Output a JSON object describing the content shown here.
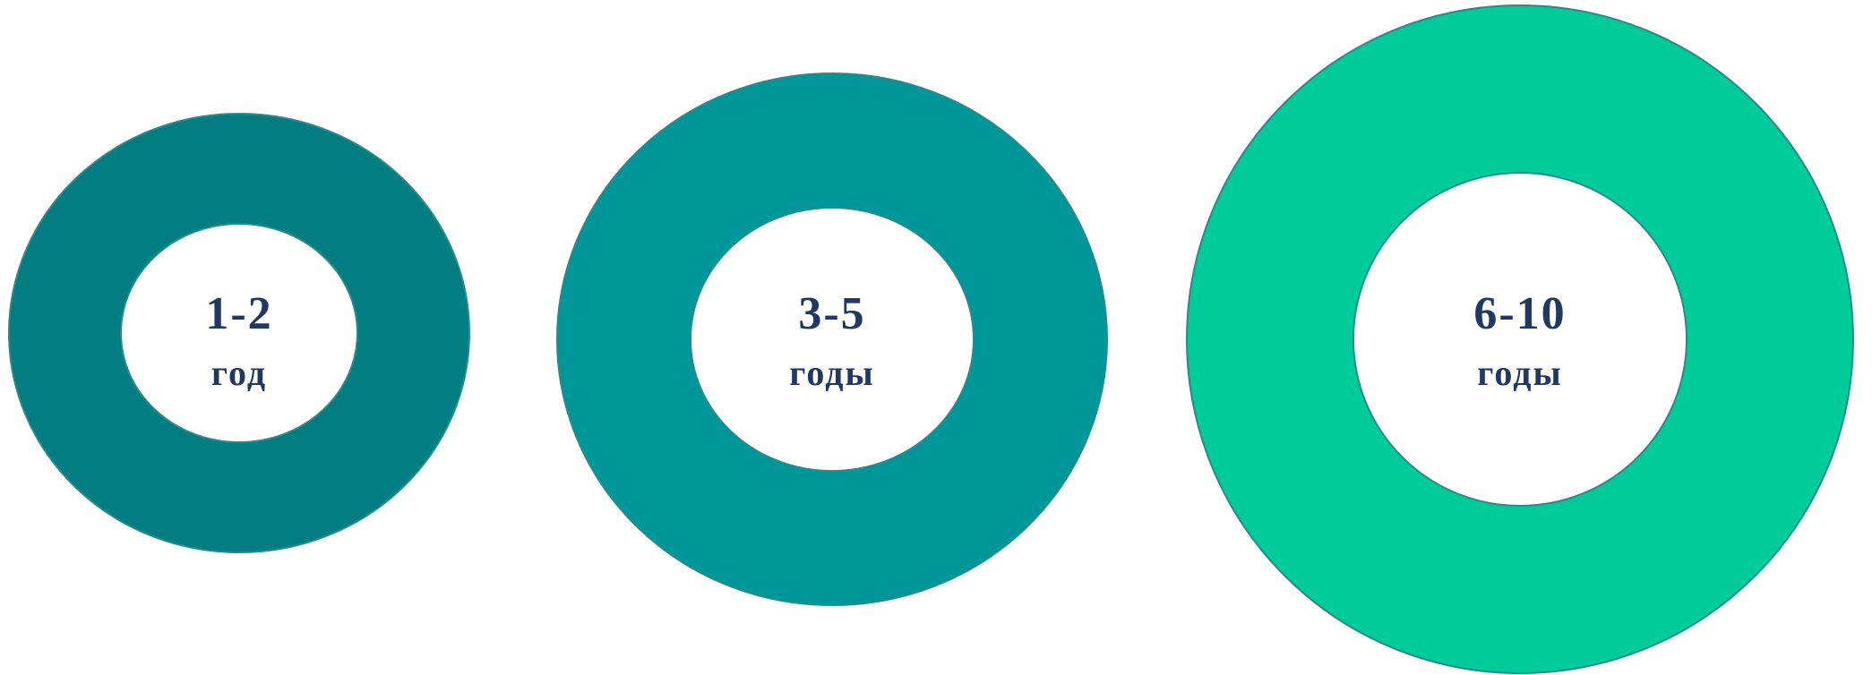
{
  "colors": {
    "ring_1": "#027d81",
    "ring_2": "#00979a",
    "ring_3": "#00cb9a",
    "hole": "#ffffff",
    "outline": "#2a8a8a",
    "text": "#1f3864"
  },
  "rings": [
    {
      "range": "1-2",
      "unit": "год"
    },
    {
      "range": "3-5",
      "unit": "годы"
    },
    {
      "range": "6-10",
      "unit": "годы"
    }
  ]
}
